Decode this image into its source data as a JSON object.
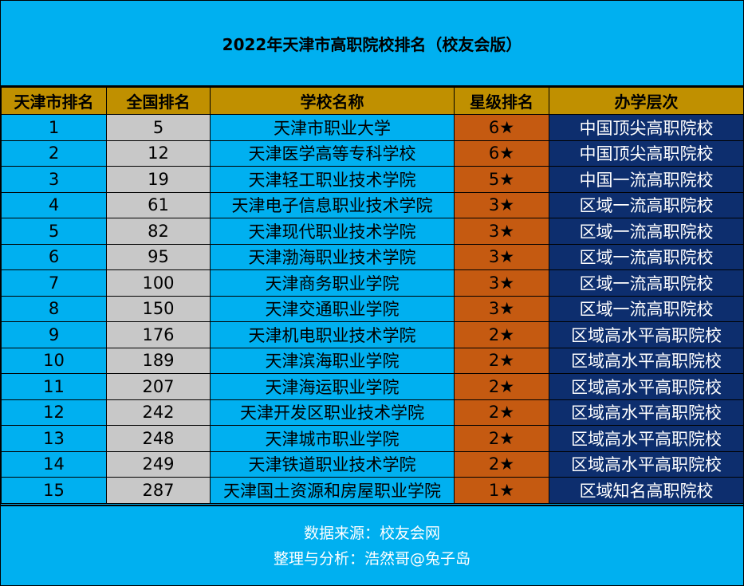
{
  "title": "2022年天津市高职院校排名（校友会版）",
  "headers": [
    "天津市排名",
    "全国排名",
    "学校名称",
    "星级排名",
    "办学层次"
  ],
  "rows": [
    {
      "city_rank": "1",
      "national_rank": "5",
      "name": "天津市职业大学",
      "stars": "6★",
      "level": "中国顶尖高职院校"
    },
    {
      "city_rank": "2",
      "national_rank": "12",
      "name": "天津医学高等专科学校",
      "stars": "6★",
      "level": "中国顶尖高职院校"
    },
    {
      "city_rank": "3",
      "national_rank": "19",
      "name": "天津轻工职业技术学院",
      "stars": "5★",
      "level": "中国一流高职院校"
    },
    {
      "city_rank": "4",
      "national_rank": "61",
      "name": "天津电子信息职业技术学院",
      "stars": "3★",
      "level": "区域一流高职院校"
    },
    {
      "city_rank": "5",
      "national_rank": "82",
      "name": "天津现代职业技术学院",
      "stars": "3★",
      "level": "区域一流高职院校"
    },
    {
      "city_rank": "6",
      "national_rank": "95",
      "name": "天津渤海职业技术学院",
      "stars": "3★",
      "level": "区域一流高职院校"
    },
    {
      "city_rank": "7",
      "national_rank": "100",
      "name": "天津商务职业学院",
      "stars": "3★",
      "level": "区域一流高职院校"
    },
    {
      "city_rank": "8",
      "national_rank": "150",
      "name": "天津交通职业学院",
      "stars": "3★",
      "level": "区域一流高职院校"
    },
    {
      "city_rank": "9",
      "national_rank": "176",
      "name": "天津机电职业技术学院",
      "stars": "2★",
      "level": "区域高水平高职院校"
    },
    {
      "city_rank": "10",
      "national_rank": "189",
      "name": "天津滨海职业学院",
      "stars": "2★",
      "level": "区域高水平高职院校"
    },
    {
      "city_rank": "11",
      "national_rank": "207",
      "name": "天津海运职业学院",
      "stars": "2★",
      "level": "区域高水平高职院校"
    },
    {
      "city_rank": "12",
      "national_rank": "242",
      "name": "天津开发区职业技术学院",
      "stars": "2★",
      "level": "区域高水平高职院校"
    },
    {
      "city_rank": "13",
      "national_rank": "248",
      "name": "天津城市职业学院",
      "stars": "2★",
      "level": "区域高水平高职院校"
    },
    {
      "city_rank": "14",
      "national_rank": "249",
      "name": "天津铁道职业技术学院",
      "stars": "2★",
      "level": "区域高水平高职院校"
    },
    {
      "city_rank": "15",
      "national_rank": "287",
      "name": "天津国土资源和房屋职业学院",
      "stars": "1★",
      "level": "区域知名高职院校"
    }
  ],
  "footer": {
    "source": "数据来源：校友会网",
    "author": "整理与分析：浩然哥@兔子岛"
  },
  "colors": {
    "background": "#00b0f0",
    "header": "#c09000",
    "national_rank_col": "#c8c8c8",
    "star_col": "#c55a11",
    "level_col": "#0d2e6e"
  }
}
